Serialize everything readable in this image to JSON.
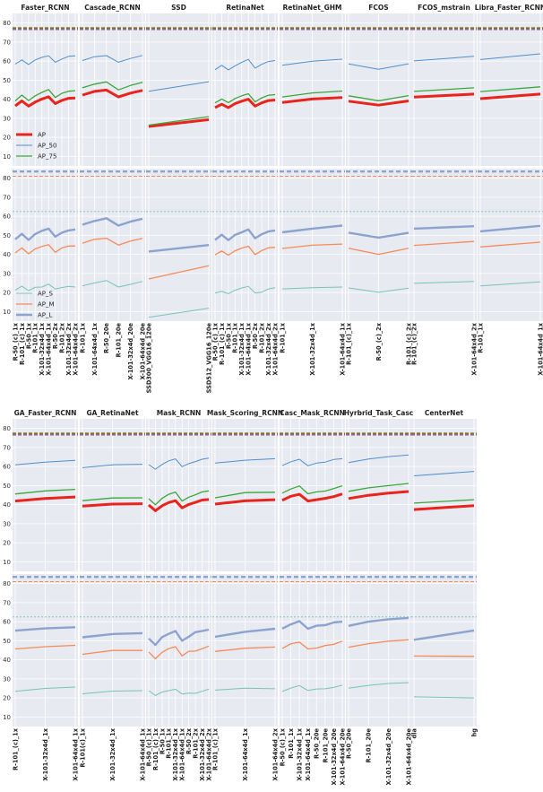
{
  "figure": {
    "y_ticks": [
      10,
      20,
      30,
      40,
      50,
      60,
      70,
      80
    ],
    "ylim_top": [
      5,
      85
    ],
    "ylim_bottom": [
      5,
      85
    ],
    "grid": true,
    "background": "#e8eaf2",
    "colors": {
      "AP": "#e8241c",
      "AP_50": "#4f8fd0",
      "AP_75": "#3aa83a",
      "AP_S": "#76c4b6",
      "AP_M": "#f78a58",
      "AP_L": "#8ca3d0",
      "ref_red": "#d83a2c",
      "ref_green": "#3aa83a",
      "ref_blue": "#8ca3d0",
      "ref_orange": "#f78a58",
      "ref_teal": "#76c4b6"
    },
    "legend_top": [
      "AP",
      "AP_50",
      "AP_75"
    ],
    "legend_bottom": [
      "AP_S",
      "AP_M",
      "AP_L"
    ],
    "ref_lines_top": [
      77,
      77,
      77
    ],
    "ref_lines_bottom": {
      "AP_L": 83.5,
      "AP_M": 81,
      "AP_S": 62.5
    }
  },
  "chart_data": [
    {
      "type": "line",
      "title": "Faster_RCNN",
      "categories": [
        "R-50_(c)_1x",
        "R-101_(c)_1x",
        "R-50_1x",
        "R-101_1x",
        "X-101-32x4d_1x",
        "X-101-64x4d_1x",
        "R-50_2x",
        "R-101_2x",
        "X-101-32x4d_2x",
        "X-101-64x4d_2x"
      ],
      "series": [
        {
          "name": "AP",
          "values": [
            36.5,
            39.1,
            36.4,
            38.5,
            40.1,
            41.3,
            37.7,
            39.4,
            40.5,
            40.6
          ]
        },
        {
          "name": "AP_50",
          "values": [
            58.4,
            60.6,
            58.2,
            60.6,
            62.0,
            62.8,
            59.4,
            61.1,
            62.5,
            62.8
          ]
        },
        {
          "name": "AP_75",
          "values": [
            39.1,
            42.2,
            39.3,
            41.8,
            43.6,
            45.1,
            40.9,
            43.1,
            44.2,
            44.5
          ]
        },
        {
          "name": "AP_S",
          "values": [
            21.3,
            23.3,
            21.0,
            22.8,
            22.9,
            24.4,
            21.9,
            22.6,
            23.2,
            22.9
          ]
        },
        {
          "name": "AP_M",
          "values": [
            40.8,
            43.4,
            40.3,
            42.9,
            44.2,
            45.1,
            41.1,
            43.4,
            44.4,
            44.4
          ]
        },
        {
          "name": "AP_L",
          "values": [
            47.9,
            50.8,
            47.6,
            50.7,
            52.4,
            53.5,
            49.3,
            51.4,
            52.6,
            53.1
          ]
        }
      ]
    },
    {
      "type": "line",
      "title": "Cascade_RCNN",
      "categories": [
        "R-101_1x",
        "X-101-64x4d_1x",
        "R-50_20e",
        "R-101_20e",
        "X-101-32x4d_20e",
        "X-101-64x4d_20e"
      ],
      "series": [
        {
          "name": "AP",
          "values": [
            42.2,
            44.1,
            44.8,
            41.2,
            43.2,
            44.6
          ]
        },
        {
          "name": "AP_50",
          "values": [
            60.3,
            62.3,
            62.9,
            59.4,
            61.4,
            63.0
          ]
        },
        {
          "name": "AP_75",
          "values": [
            46.0,
            47.9,
            49.1,
            44.9,
            47.2,
            48.9
          ]
        },
        {
          "name": "AP_S",
          "values": [
            23.5,
            25.0,
            26.3,
            22.9,
            24.3,
            25.8
          ]
        },
        {
          "name": "AP_M",
          "values": [
            45.9,
            47.9,
            48.5,
            44.9,
            47.0,
            48.4
          ]
        },
        {
          "name": "AP_L",
          "values": [
            55.6,
            57.5,
            59.0,
            55.1,
            57.2,
            58.7
          ]
        }
      ]
    },
    {
      "type": "line",
      "title": "SSD",
      "categories": [
        "SSD300_VGG16_120e",
        "SSD512_VGG16_120e"
      ],
      "series": [
        {
          "name": "AP",
          "values": [
            25.7,
            29.3
          ]
        },
        {
          "name": "AP_50",
          "values": [
            44.2,
            49.2
          ]
        },
        {
          "name": "AP_75",
          "values": [
            26.4,
            30.9
          ]
        },
        {
          "name": "AP_S",
          "values": [
            7.0,
            11.8
          ]
        },
        {
          "name": "AP_M",
          "values": [
            27.1,
            34.1
          ]
        },
        {
          "name": "AP_L",
          "values": [
            41.5,
            44.9
          ]
        }
      ]
    },
    {
      "type": "line",
      "title": "RetinaNet",
      "categories": [
        "R-50_(c)_1x",
        "R-101_(c)_1x",
        "R-50_1x",
        "R-101_1x",
        "X-101-32x4d_1x",
        "X-101-64x4d_1x",
        "R-50_2x",
        "R-101_2x",
        "X-101-32x4d_2x",
        "X-101-64x4d_2x"
      ],
      "series": [
        {
          "name": "AP",
          "values": [
            35.6,
            37.4,
            35.6,
            37.7,
            39.0,
            40.0,
            36.4,
            38.1,
            39.3,
            39.6
          ]
        },
        {
          "name": "AP_50",
          "values": [
            55.5,
            57.8,
            55.4,
            57.5,
            59.4,
            60.9,
            56.3,
            58.3,
            59.8,
            60.3
          ]
        },
        {
          "name": "AP_75",
          "values": [
            38.1,
            40.1,
            38.2,
            40.4,
            41.8,
            42.9,
            38.6,
            40.7,
            42.1,
            42.4
          ]
        },
        {
          "name": "AP_S",
          "values": [
            19.8,
            20.6,
            19.4,
            21.2,
            22.4,
            23.2,
            19.8,
            20.2,
            21.9,
            22.5
          ]
        },
        {
          "name": "AP_M",
          "values": [
            39.8,
            41.8,
            39.6,
            41.9,
            43.3,
            44.3,
            39.9,
            42.0,
            43.5,
            43.7
          ]
        },
        {
          "name": "AP_L",
          "values": [
            47.6,
            50.3,
            47.5,
            50.2,
            51.6,
            53.1,
            48.5,
            50.6,
            52.0,
            52.6
          ]
        }
      ]
    },
    {
      "type": "line",
      "title": "RetinaNet_GHM",
      "categories": [
        "R-101_1x",
        "X-101-32x4d_1x",
        "X-101-64x4d_1x"
      ],
      "series": [
        {
          "name": "AP",
          "values": [
            38.3,
            40.1,
            40.9
          ]
        },
        {
          "name": "AP_50",
          "values": [
            57.8,
            59.9,
            61.0
          ]
        },
        {
          "name": "AP_75",
          "values": [
            41.2,
            43.3,
            44.3
          ]
        },
        {
          "name": "AP_S",
          "values": [
            21.9,
            22.5,
            22.9
          ]
        },
        {
          "name": "AP_M",
          "values": [
            43.1,
            44.8,
            45.4
          ]
        },
        {
          "name": "AP_L",
          "values": [
            51.6,
            53.5,
            55.1
          ]
        }
      ]
    },
    {
      "type": "line",
      "title": "FCOS",
      "categories": [
        "R-101_(c)_1x",
        "R-50_(c)_2x",
        "R-101_(c)_2x"
      ],
      "series": [
        {
          "name": "AP",
          "values": [
            39.0,
            36.9,
            39.1
          ]
        },
        {
          "name": "AP_50",
          "values": [
            58.5,
            55.7,
            58.6
          ]
        },
        {
          "name": "AP_75",
          "values": [
            41.8,
            39.2,
            41.9
          ]
        },
        {
          "name": "AP_S",
          "values": [
            22.4,
            20.1,
            22.3
          ]
        },
        {
          "name": "AP_M",
          "values": [
            43.2,
            40.0,
            43.2
          ]
        },
        {
          "name": "AP_L",
          "values": [
            51.4,
            48.8,
            51.3
          ]
        }
      ]
    },
    {
      "type": "line",
      "title": "FCOS_mstrain",
      "categories": [
        "R-101_(c)_2x",
        "X-101-64x4d_2x"
      ],
      "series": [
        {
          "name": "AP",
          "values": [
            41.1,
            42.7
          ]
        },
        {
          "name": "AP_50",
          "values": [
            60.1,
            62.5
          ]
        },
        {
          "name": "AP_75",
          "values": [
            44.1,
            46.0
          ]
        },
        {
          "name": "AP_S",
          "values": [
            24.8,
            25.8
          ]
        },
        {
          "name": "AP_M",
          "values": [
            44.7,
            46.8
          ]
        },
        {
          "name": "AP_L",
          "values": [
            53.5,
            54.8
          ]
        }
      ]
    },
    {
      "type": "line",
      "title": "Libra_Faster_RCNN",
      "categories": [
        "R-101_1x",
        "X-101-64x4d_1x"
      ],
      "series": [
        {
          "name": "AP",
          "values": [
            40.3,
            42.7
          ]
        },
        {
          "name": "AP_50",
          "values": [
            60.8,
            63.8
          ]
        },
        {
          "name": "AP_75",
          "values": [
            44.0,
            46.5
          ]
        },
        {
          "name": "AP_S",
          "values": [
            23.5,
            25.6
          ]
        },
        {
          "name": "AP_M",
          "values": [
            43.9,
            46.4
          ]
        },
        {
          "name": "AP_L",
          "values": [
            52.1,
            55.0
          ]
        }
      ]
    },
    {
      "type": "line",
      "title": "GA_Faster_RCNN",
      "categories": [
        "R-101_(c)_1x",
        "X-101-32x4d_1x",
        "X-101-64x4d_1x"
      ],
      "series": [
        {
          "name": "AP",
          "values": [
            41.9,
            43.2,
            44.0
          ]
        },
        {
          "name": "AP_50",
          "values": [
            60.9,
            62.3,
            63.2
          ]
        },
        {
          "name": "AP_75",
          "values": [
            45.6,
            47.2,
            48.0
          ]
        },
        {
          "name": "AP_S",
          "values": [
            23.5,
            25.0,
            25.7
          ]
        },
        {
          "name": "AP_M",
          "values": [
            45.7,
            46.9,
            47.6
          ]
        },
        {
          "name": "AP_L",
          "values": [
            55.3,
            56.5,
            57.1
          ]
        }
      ]
    },
    {
      "type": "line",
      "title": "GA_RetinaNet",
      "categories": [
        "R-101(c)_1x",
        "X-101-32x4d_1x",
        "X-101-64x4d_1x"
      ],
      "series": [
        {
          "name": "AP",
          "values": [
            39.2,
            40.3,
            40.5
          ]
        },
        {
          "name": "AP_50",
          "values": [
            59.4,
            60.9,
            61.2
          ]
        },
        {
          "name": "AP_75",
          "values": [
            42.1,
            43.5,
            43.6
          ]
        },
        {
          "name": "AP_S",
          "values": [
            22.2,
            23.6,
            23.8
          ]
        },
        {
          "name": "AP_M",
          "values": [
            42.9,
            44.9,
            44.9
          ]
        },
        {
          "name": "AP_L",
          "values": [
            51.8,
            53.5,
            54.0
          ]
        }
      ]
    },
    {
      "type": "line",
      "title": "Mask_RCNN",
      "categories": [
        "R-50_(c)_1x",
        "R-101_(c)_1x",
        "R-50_1x",
        "R-101_1x",
        "X-101-32x4d_1x",
        "X-101-64x4d_1x",
        "R-50_2x",
        "R-101_2x",
        "X-101-32x4d_2x",
        "X-101-64x4d_2x"
      ],
      "series": [
        {
          "name": "AP",
          "values": [
            39.8,
            36.8,
            39.4,
            41.1,
            42.1,
            38.3,
            40.1,
            41.2,
            42.4,
            42.7
          ]
        },
        {
          "name": "AP_50",
          "values": [
            61.0,
            58.6,
            61.1,
            63.0,
            64.0,
            59.9,
            61.5,
            62.6,
            63.8,
            64.4
          ]
        },
        {
          "name": "AP_75",
          "values": [
            43.1,
            39.9,
            43.3,
            45.4,
            46.6,
            41.9,
            43.9,
            45.2,
            46.7,
            47.2
          ]
        },
        {
          "name": "AP_S",
          "values": [
            23.8,
            21.3,
            23.1,
            23.8,
            24.6,
            22.1,
            22.5,
            22.4,
            23.5,
            24.6
          ]
        },
        {
          "name": "AP_M",
          "values": [
            44.1,
            40.6,
            43.9,
            45.9,
            46.9,
            42.1,
            44.5,
            44.6,
            45.8,
            47.2
          ]
        },
        {
          "name": "AP_L",
          "values": [
            51.2,
            47.8,
            51.9,
            53.6,
            55.1,
            50.0,
            52.1,
            54.5,
            55.1,
            55.8
          ]
        }
      ]
    },
    {
      "type": "line",
      "title": "Mask_Scoring_RCNN",
      "categories": [
        "R-101_(c)_1x",
        "X-101-64x4d_1x",
        "X-101-64x4d_2x"
      ],
      "series": [
        {
          "name": "AP",
          "values": [
            40.3,
            42.0,
            42.6
          ]
        },
        {
          "name": "AP_50",
          "values": [
            61.8,
            63.3,
            64.1
          ]
        },
        {
          "name": "AP_75",
          "values": [
            43.6,
            46.3,
            46.5
          ]
        },
        {
          "name": "AP_S",
          "values": [
            24.1,
            25.1,
            24.8
          ]
        },
        {
          "name": "AP_M",
          "values": [
            44.4,
            46.1,
            46.7
          ]
        },
        {
          "name": "AP_L",
          "values": [
            52.1,
            54.7,
            56.3
          ]
        }
      ]
    },
    {
      "type": "line",
      "title": "Casc_Mask_RCNN",
      "categories": [
        "R-50_(c)_1x",
        "R-101_1x",
        "X-101-32x4d_1x",
        "X-101-64x4d_1x",
        "R-50_20e",
        "R-101_20e",
        "X-101-32x4d_20e",
        "X-101-64x4d_20e"
      ],
      "series": [
        {
          "name": "AP",
          "values": [
            42.3,
            44.4,
            45.4,
            41.9,
            42.6,
            43.3,
            44.2,
            45.6
          ]
        },
        {
          "name": "AP_50",
          "values": [
            60.5,
            62.5,
            63.8,
            60.4,
            61.8,
            62.3,
            63.7,
            64.1
          ]
        },
        {
          "name": "AP_75",
          "values": [
            46.1,
            48.2,
            49.8,
            45.7,
            46.7,
            47.1,
            48.4,
            49.9
          ]
        },
        {
          "name": "AP_S",
          "values": [
            23.4,
            25.2,
            26.5,
            23.9,
            24.7,
            24.8,
            25.5,
            26.7
          ]
        },
        {
          "name": "AP_M",
          "values": [
            46.0,
            48.4,
            49.3,
            45.7,
            46.2,
            47.5,
            48.1,
            49.8
          ]
        },
        {
          "name": "AP_L",
          "values": [
            56.4,
            58.6,
            60.3,
            56.3,
            57.9,
            58.2,
            59.6,
            60.0
          ]
        }
      ]
    },
    {
      "type": "line",
      "title": "Hyrbrid_Task_Casc",
      "categories": [
        "R-50_20e",
        "R-101_20e",
        "X-101-32x4d_20e",
        "X-101-64x4d_20e"
      ],
      "series": [
        {
          "name": "AP",
          "values": [
            43.2,
            44.9,
            46.1,
            46.9
          ]
        },
        {
          "name": "AP_50",
          "values": [
            62.1,
            63.9,
            65.2,
            66.1
          ]
        },
        {
          "name": "AP_75",
          "values": [
            47.0,
            48.8,
            50.0,
            51.1
          ]
        },
        {
          "name": "AP_S",
          "values": [
            25.1,
            26.6,
            27.6,
            28.0
          ]
        },
        {
          "name": "AP_M",
          "values": [
            46.6,
            48.5,
            49.8,
            50.5
          ]
        },
        {
          "name": "AP_L",
          "values": [
            57.8,
            60.0,
            61.3,
            62.0
          ]
        }
      ]
    },
    {
      "type": "line",
      "title": "CenterNet",
      "categories": [
        "dla",
        "hg"
      ],
      "series": [
        {
          "name": "AP",
          "values": [
            37.4,
            39.5
          ]
        },
        {
          "name": "AP_50",
          "values": [
            55.1,
            57.4
          ]
        },
        {
          "name": "AP_75",
          "values": [
            40.8,
            42.6
          ]
        },
        {
          "name": "AP_S",
          "values": [
            20.6,
            20.0
          ]
        },
        {
          "name": "AP_M",
          "values": [
            42.0,
            41.8
          ]
        },
        {
          "name": "AP_L",
          "values": [
            50.5,
            55.4
          ]
        }
      ]
    }
  ]
}
